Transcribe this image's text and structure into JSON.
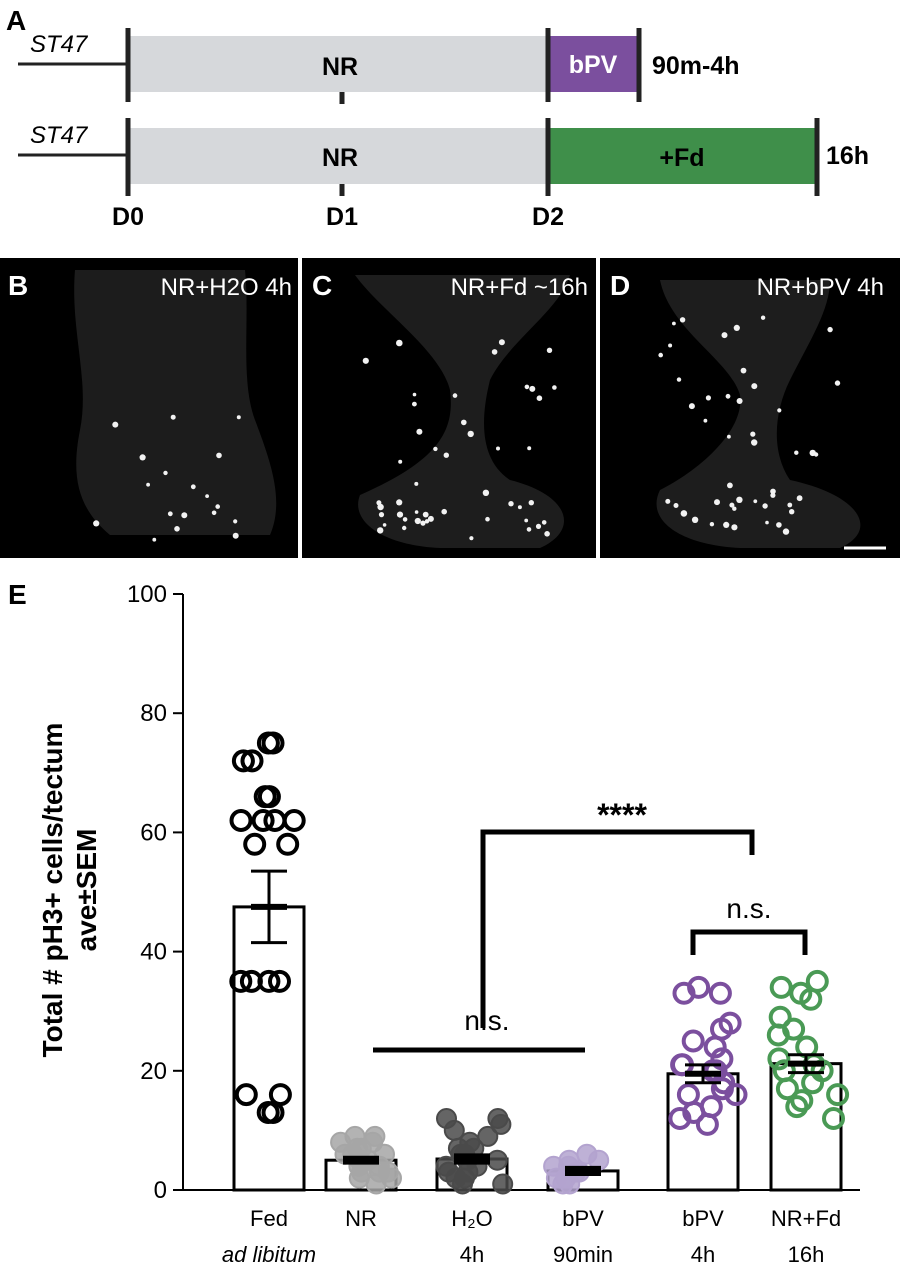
{
  "panel_letters": {
    "a": "A",
    "e": "E"
  },
  "timeline": {
    "rows": [
      {
        "start_label": "ST47",
        "nr_label": "NR",
        "treatment_label": "bPV",
        "duration_label": "90m-4h",
        "treatment_color": "#7b4f9e"
      },
      {
        "start_label": "ST47",
        "nr_label": "NR",
        "treatment_label": "+Fd",
        "duration_label": "16h",
        "treatment_color": "#3f8f4a"
      }
    ],
    "day_labels": [
      "D0",
      "D1",
      "D2"
    ],
    "nr_bar_color": "#d6d8db"
  },
  "micrographs": [
    {
      "letter": "B",
      "label": "NR+H2O 4h"
    },
    {
      "letter": "C",
      "label": "NR+Fd ~16h"
    },
    {
      "letter": "D",
      "label": "NR+bPV 4h"
    }
  ],
  "chart_data": {
    "type": "bar",
    "ylabel_line1": "Total # pH3+ cells/tectum",
    "ylabel_line2": "ave±SEM",
    "ylim": [
      0,
      100
    ],
    "yticks": [
      0,
      20,
      40,
      60,
      80,
      100
    ],
    "categories": [
      {
        "line1": "Fed",
        "line2": "ad libitum",
        "italic2": true
      },
      {
        "line1": "NR",
        "line2": "",
        "italic2": false
      },
      {
        "line1": "H₂O",
        "line2": "4h",
        "italic2": false
      },
      {
        "line1": "bPV",
        "line2": "90min",
        "italic2": false
      },
      {
        "line1": "bPV",
        "line2": "4h",
        "italic2": false
      },
      {
        "line1": "NR+Fd",
        "line2": "16h",
        "italic2": false
      }
    ],
    "series": [
      {
        "mean": 47.5,
        "sem": 6.0,
        "color": "#000000",
        "filled": false,
        "points": [
          75,
          75,
          72,
          72,
          66,
          66,
          62,
          62,
          62,
          62,
          58,
          58,
          35,
          35,
          35,
          35,
          16,
          16,
          13,
          13
        ]
      },
      {
        "mean": 5,
        "sem": 0.5,
        "color": "#a6a6a6",
        "filled": true,
        "points": [
          1,
          2,
          3,
          3,
          4,
          4,
          5,
          5,
          5,
          6,
          6,
          6,
          7,
          7,
          8,
          8,
          9,
          9,
          2,
          3
        ]
      },
      {
        "mean": 5.2,
        "sem": 0.7,
        "color": "#4a4a4a",
        "filled": true,
        "points": [
          1,
          2,
          3,
          4,
          4,
          5,
          5,
          6,
          6,
          7,
          8,
          9,
          10,
          11,
          12,
          12,
          3,
          2,
          1,
          7
        ]
      },
      {
        "mean": 3.2,
        "sem": 0.6,
        "color": "#b3a3cf",
        "filled": true,
        "points": [
          1,
          1,
          2,
          2,
          3,
          3,
          4,
          4,
          5,
          5,
          6
        ]
      },
      {
        "mean": 19.5,
        "sem": 1.5,
        "color": "#7b4f9e",
        "filled": false,
        "points": [
          34,
          33,
          33,
          28,
          27,
          25,
          24,
          22,
          21,
          21,
          20,
          20,
          18,
          17,
          16,
          16,
          14,
          13,
          12,
          11
        ]
      },
      {
        "mean": 21.2,
        "sem": 1.5,
        "color": "#4a9a55",
        "filled": false,
        "points": [
          35,
          34,
          33,
          32,
          29,
          27,
          26,
          24,
          22,
          21,
          20,
          20,
          18,
          17,
          16,
          15,
          14,
          12
        ]
      }
    ],
    "annotations": {
      "ns_label": "n.s.",
      "stars_label": "****"
    }
  }
}
